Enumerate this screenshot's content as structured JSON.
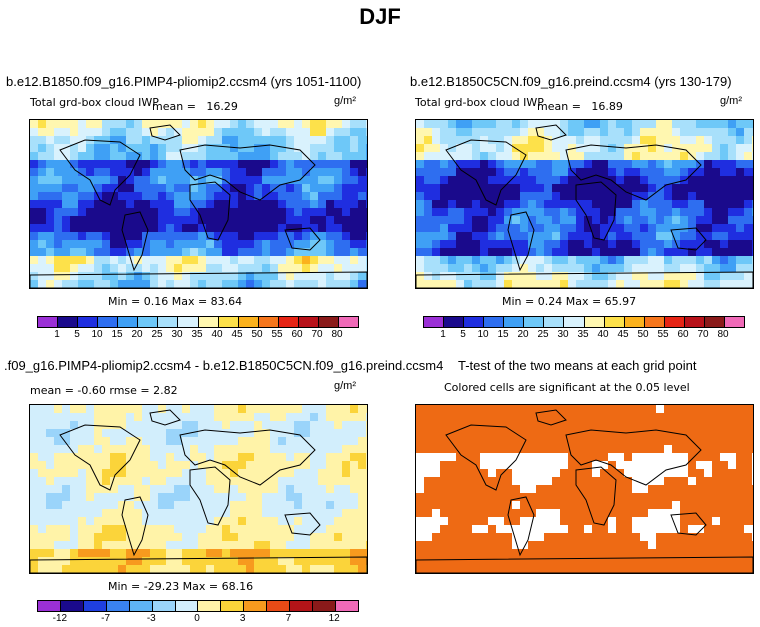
{
  "title": "DJF",
  "panels": {
    "top_left": {
      "case": "b.e12.B1850.f09_g16.PIMP4-pliomip2.ccsm4 (yrs 1051-1100)",
      "variable": "Total grd-box cloud IWP",
      "mean_label": "mean",
      "mean_value": "16.29",
      "unit": "g/m²",
      "minmax": "Min =    0.16 Max =   83.64"
    },
    "top_right": {
      "case": "b.e12.B1850C5CN.f09_g16.preind.ccsm4 (yrs 130-179)",
      "variable": "Total grd-box cloud IWP",
      "mean_label": "mean",
      "mean_value": "16.89",
      "unit": "g/m²",
      "minmax": "Min =    0.24 Max =   65.97"
    },
    "bottom_left": {
      "case": ".f09_g16.PIMP4-pliomip2.ccsm4 - b.e12.B1850C5CN.f09_g16.preind.ccsm4",
      "stats": "mean =  -0.60     rmse =    2.82",
      "unit": "g/m²",
      "minmax": "Min = -29.23 Max =   68.16"
    },
    "bottom_right": {
      "title": "T-test of the two means at each grid point",
      "subtitle": "Colored cells are significant at the 0.05 level"
    }
  },
  "colors": {
    "abs": [
      "#9b30d6",
      "#1a0a8c",
      "#1f2ee0",
      "#2e6ef0",
      "#3fa0f5",
      "#6ec8f8",
      "#a8e0fb",
      "#d9f2fd",
      "#fff7b0",
      "#fde14a",
      "#fbb21d",
      "#f6761c",
      "#e62415",
      "#b8121a",
      "#8a1a1a",
      "#f06ab8"
    ],
    "diff": [
      "#9b30d6",
      "#1a0a8c",
      "#1f3fe0",
      "#3a82f0",
      "#5eb4f6",
      "#9ad4fa",
      "#d2eefc",
      "#fff3a8",
      "#fbd43a",
      "#f79a1e",
      "#e84b16",
      "#b21418",
      "#8a1a1a",
      "#f06ab8"
    ],
    "ttest": "#ee6a14"
  },
  "chart_data": [
    {
      "type": "heatmap",
      "title": "b.e12.B1850.f09_g16.PIMP4-pliomip2.ccsm4 (yrs 1051-1100)",
      "subtitle": "Total grd-box cloud IWP",
      "units": "g/m²",
      "mean": 16.29,
      "min": 0.16,
      "max": 83.64,
      "colorbar_levels": [
        "1",
        "5",
        "10",
        "15",
        "20",
        "25",
        "30",
        "35",
        "40",
        "45",
        "50",
        "55",
        "60",
        "70",
        "80"
      ]
    },
    {
      "type": "heatmap",
      "title": "b.e12.B1850C5CN.f09_g16.preind.ccsm4 (yrs 130-179)",
      "subtitle": "Total grd-box cloud IWP",
      "units": "g/m²",
      "mean": 16.89,
      "min": 0.24,
      "max": 65.97,
      "colorbar_levels": [
        "1",
        "5",
        "10",
        "15",
        "20",
        "25",
        "30",
        "35",
        "40",
        "45",
        "50",
        "55",
        "60",
        "70",
        "80"
      ]
    },
    {
      "type": "heatmap",
      "title": ".f09_g16.PIMP4-pliomip2.ccsm4 - b.e12.B1850C5CN.f09_g16.preind.ccsm4",
      "units": "g/m²",
      "mean": -0.6,
      "rmse": 2.82,
      "min": -29.23,
      "max": 68.16,
      "colorbar_labels": [
        "-12",
        "-7",
        "-3",
        "0",
        "3",
        "7",
        "12"
      ]
    },
    {
      "type": "heatmap",
      "title": "T-test of the two means at each grid point",
      "subtitle": "Colored cells are significant at the 0.05 level",
      "significance_level": 0.05
    }
  ]
}
